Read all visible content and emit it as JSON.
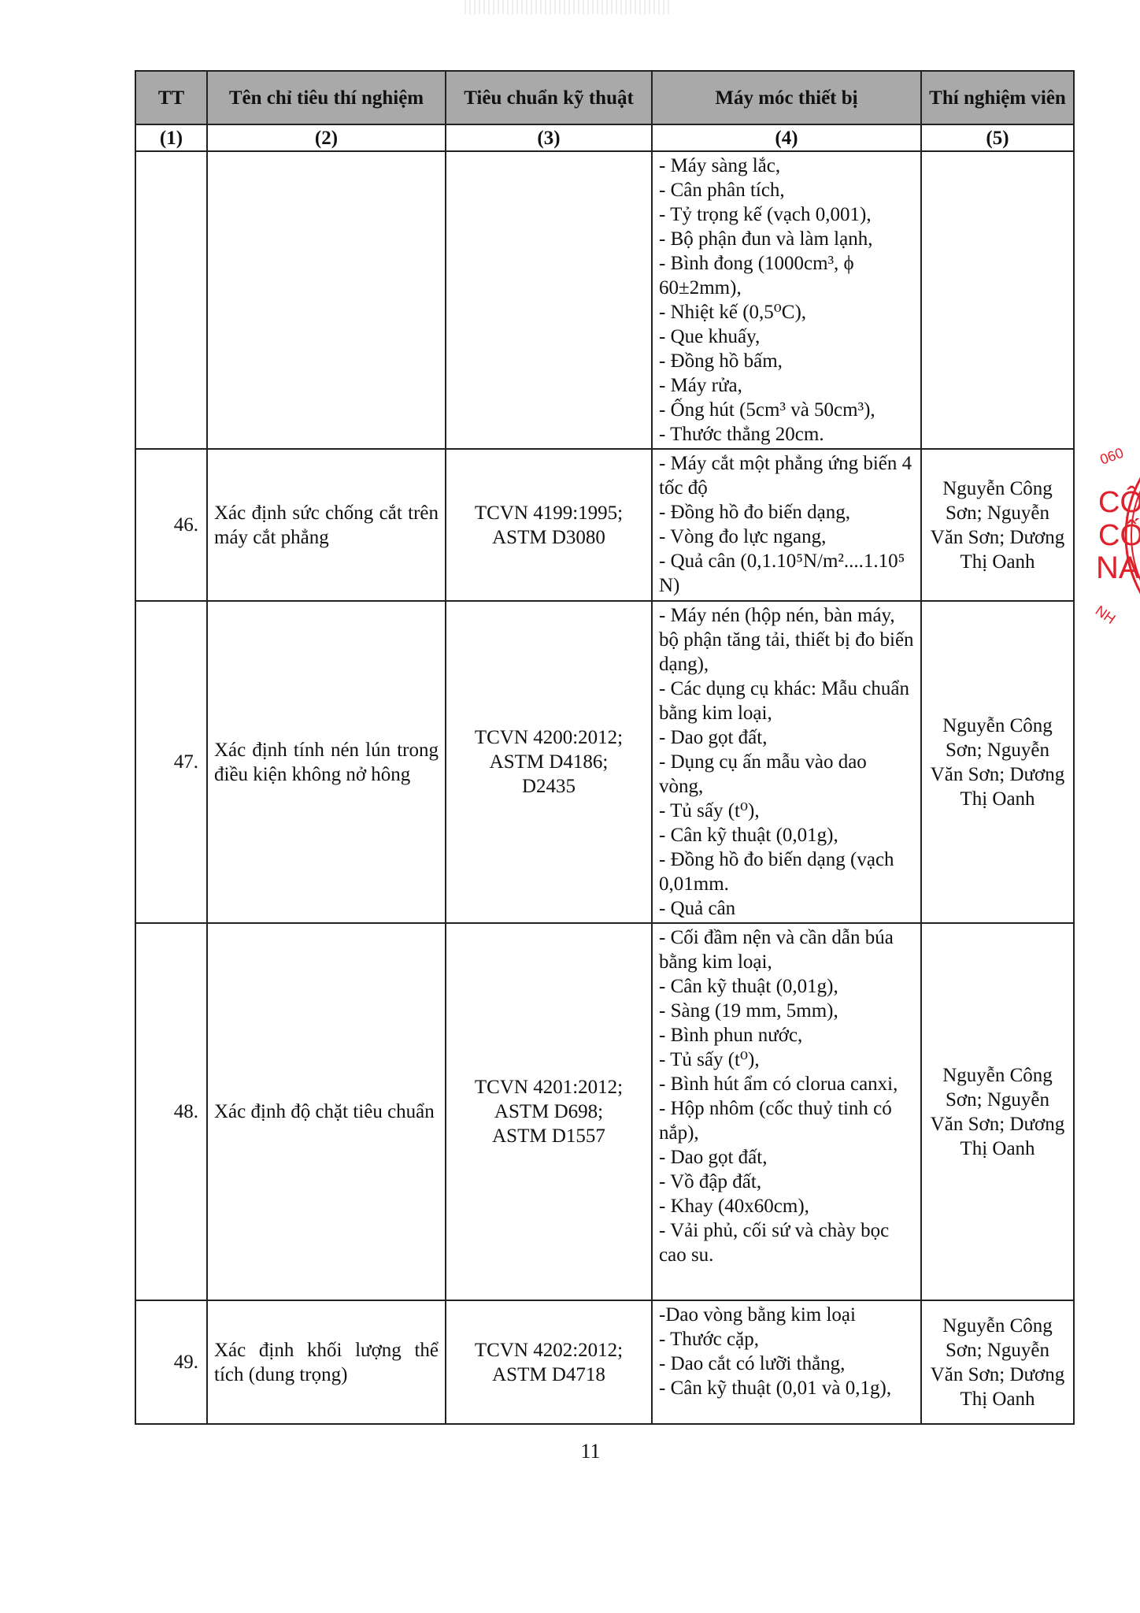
{
  "table": {
    "headers": [
      "TT",
      "Tên chỉ tiêu thí nghiệm",
      "Tiêu chuẩn kỹ thuật",
      "Máy móc thiết bị",
      "Thí nghiệm viên"
    ],
    "column_numbers": [
      "(1)",
      "(2)",
      "(3)",
      "(4)",
      "(5)"
    ],
    "rows": [
      {
        "tt": "",
        "name": "",
        "standard": [],
        "equipment": [
          "- Máy sàng lắc,",
          "- Cân phân tích,",
          "- Tỷ trọng kế (vạch 0,001),",
          "- Bộ phận đun và làm lạnh,",
          "- Bình đong (1000cm³, ϕ 60±2mm),",
          "- Nhiệt kế (0,5⁰C),",
          "- Que khuấy,",
          "- Đồng hồ bấm,",
          "- Máy rửa,",
          "- Ống hút (5cm³ và 50cm³),",
          "- Thước thẳng 20cm."
        ],
        "staff": ""
      },
      {
        "tt": "46.",
        "name": "Xác định sức chống cắt trên máy cắt phẳng",
        "standard": [
          "TCVN 4199:1995;",
          "ASTM D3080"
        ],
        "equipment": [
          "- Máy cắt  một phẳng ứng biến 4 tốc độ",
          "- Đồng hồ đo biến dạng,",
          "- Vòng đo lực ngang,",
          "- Quả cân (0,1.10⁵N/m²....1.10⁵ N)"
        ],
        "staff": "Nguyễn Công Sơn; Nguyễn Văn Sơn; Dương Thị Oanh"
      },
      {
        "tt": "47.",
        "name": "Xác định tính nén lún trong điều kiện không nở hông",
        "standard": [
          "TCVN 4200:2012;",
          "ASTM D4186;",
          "D2435"
        ],
        "equipment": [
          "- Máy nén (hộp nén, bàn máy, bộ phận tăng tải, thiết bị đo biến dạng),",
          "- Các dụng cụ khác: Mẫu chuẩn bằng kim loại,",
          "- Dao gọt đất,",
          "- Dụng cụ ấn mẫu vào dao vòng,",
          "- Tủ sấy (t⁰),",
          "- Cân kỹ thuật (0,01g),",
          "- Đồng hồ đo biến dạng (vạch 0,01mm.",
          "- Quả cân"
        ],
        "staff": "Nguyễn Công Sơn; Nguyễn Văn Sơn; Dương Thị Oanh"
      },
      {
        "tt": "48.",
        "name": "Xác định độ chặt tiêu chuẩn",
        "standard": [
          "TCVN 4201:2012;",
          "ASTM D698;",
          "ASTM D1557"
        ],
        "equipment": [
          "- Cối đầm nện và cần dẫn búa bằng kim loại,",
          "- Cân kỹ thuật (0,01g),",
          "- Sàng (19 mm, 5mm),",
          "- Bình phun nước,",
          "- Tủ sấy (t⁰),",
          "- Bình hút ẩm có clorua canxi,",
          "- Hộp nhôm (cốc thuỷ tinh có nắp),",
          "- Dao gọt đất,",
          "- Vồ đập đất,",
          "- Khay (40x60cm),",
          "- Vải phủ, cối sứ và chày bọc cao su."
        ],
        "staff": "Nguyễn Công Sơn; Nguyễn Văn Sơn; Dương Thị Oanh"
      },
      {
        "tt": "49.",
        "name": "Xác định khối lượng thể tích (dung trọng)",
        "standard": [
          "TCVN 4202:2012;",
          "ASTM D4718"
        ],
        "equipment": [
          "-Dao vòng bằng kim loại",
          "- Thước cặp,",
          "- Dao cắt có lưỡi thẳng,",
          "- Cân kỹ thuật (0,01 và 0,1g),"
        ],
        "staff": "Nguyễn Công Sơn; Nguyễn Văn Sơn; Dương Thị Oanh"
      }
    ]
  },
  "page_number": "11",
  "stamp": {
    "color": "#e0202a",
    "texts": [
      "060",
      "CÔ",
      "CỐ",
      "NA",
      "NH"
    ]
  },
  "header_color": "#a9a9a9"
}
